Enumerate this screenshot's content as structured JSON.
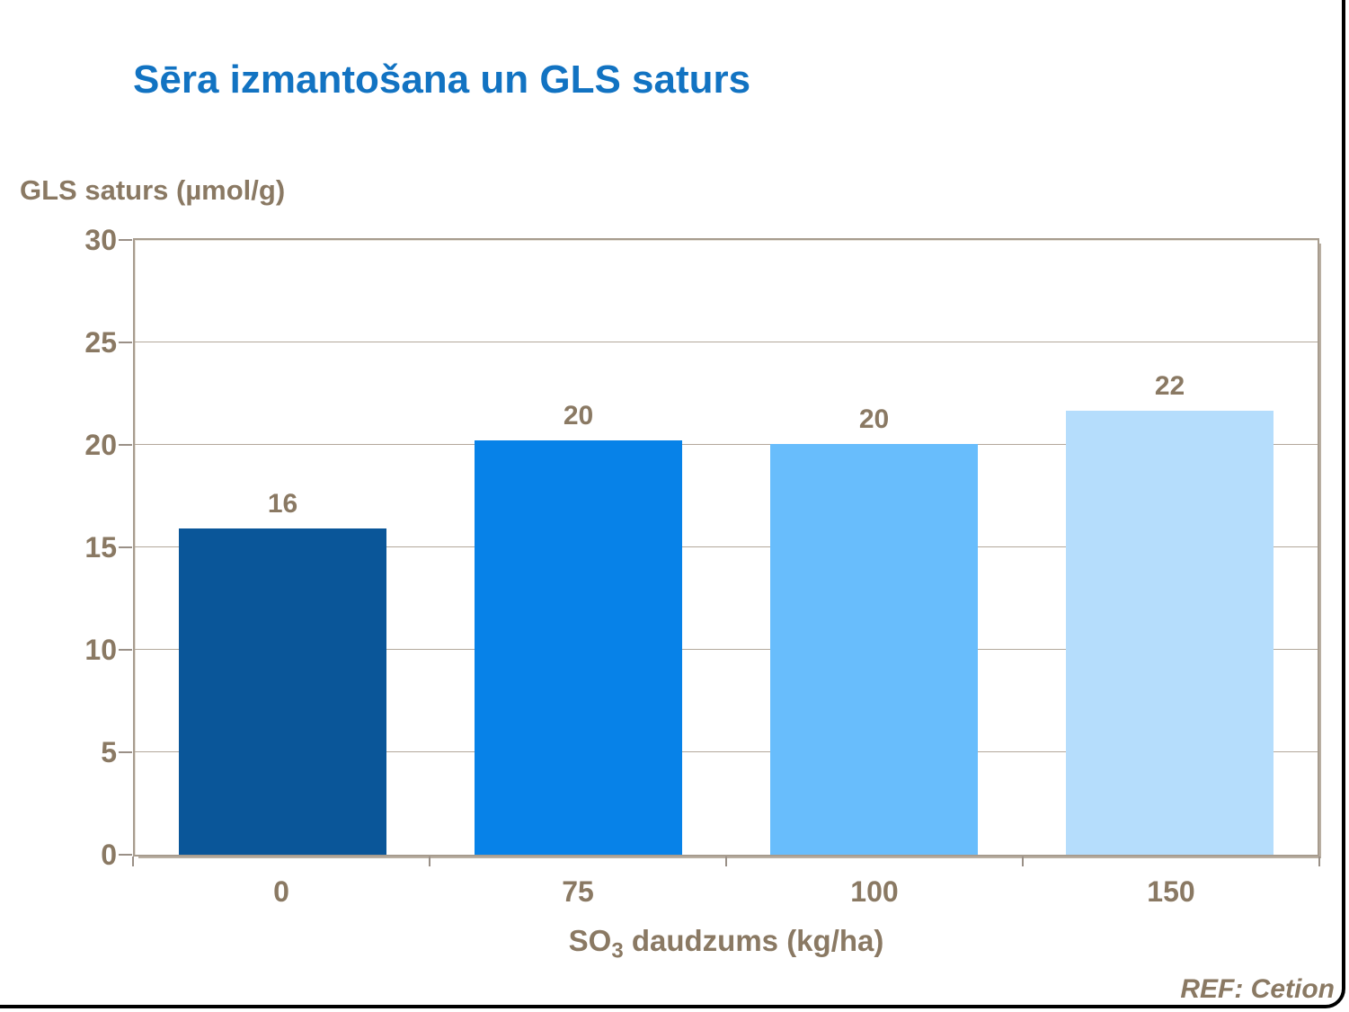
{
  "slide": {
    "title": "Sēra izmantošana un GLS saturs",
    "ref": "REF: Cetion",
    "colors": {
      "title_blue": "#1273c2",
      "text_brown": "#8a7963",
      "frame": "#a79c8e",
      "gridline": "#b3a89b",
      "tick": "#9a9087",
      "slide_border": "#000000"
    }
  },
  "chart_data": {
    "type": "bar",
    "title": "Sēra izmantošana un GLS saturs",
    "categories": [
      "0",
      "75",
      "100",
      "150"
    ],
    "values": [
      16,
      20,
      20,
      22
    ],
    "bar_heights_precise": [
      15.9,
      20.2,
      20.05,
      21.65
    ],
    "bar_colors": [
      "#0a5699",
      "#0782e8",
      "#68bdfc",
      "#b5ddfc"
    ],
    "xlabel": "SO3 daudzums (kg/ha)",
    "xlabel_parts": {
      "prefix": "SO",
      "subscript": "3",
      "suffix": " daudzums (kg/ha)"
    },
    "ylabel": "GLS saturs (µmol/g)",
    "ylim": [
      0,
      30
    ],
    "yticks": [
      0,
      5,
      10,
      15,
      20,
      25,
      30
    ],
    "grid": "horizontal",
    "legend": "none"
  }
}
